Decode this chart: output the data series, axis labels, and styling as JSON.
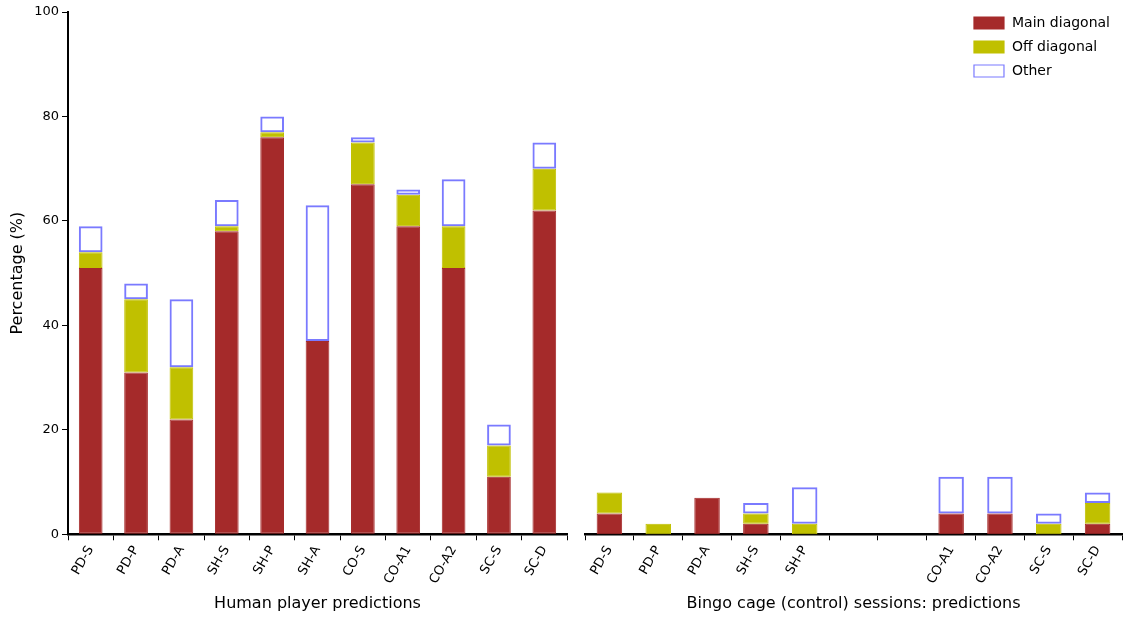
{
  "chart_data": [
    {
      "type": "bar",
      "stacked": true,
      "xlabel": "Human player predictions",
      "ylabel": "Percentage (%)",
      "categories": [
        "PD-S",
        "PD-P",
        "PD-A",
        "SH-S",
        "SH-P",
        "SH-A",
        "CO-S",
        "CO-A1",
        "CO-A2",
        "SC-S",
        "SC-D"
      ],
      "ylim": [
        0,
        100
      ],
      "yticks": [
        0,
        20,
        40,
        60,
        80,
        100
      ],
      "series": [
        {
          "color": "#a52a2a",
          "values": [
            51,
            31,
            22,
            58,
            76,
            37,
            67,
            59,
            51,
            11,
            62
          ]
        },
        {
          "color": "#c0c000",
          "values": [
            3,
            14,
            10,
            1,
            1,
            0,
            8,
            6,
            8,
            6,
            8
          ]
        },
        {
          "color": "#7a7aff",
          "values": [
            5,
            3,
            13,
            5,
            3,
            26,
            1,
            1,
            9,
            4,
            5
          ]
        }
      ]
    },
    {
      "type": "bar",
      "stacked": true,
      "xlabel": "Bingo cage (control) sessions: predictions",
      "categories": [
        "PD-S",
        "PD-P",
        "PD-A",
        "SH-S",
        "SH-P",
        null,
        null,
        "CO-A1",
        "CO-A2",
        "SC-S",
        "SC-D"
      ],
      "ylim": [
        0,
        100
      ],
      "yticks": [
        0,
        20,
        40,
        60,
        80,
        100
      ],
      "tick_labels": "x",
      "legend": "top right",
      "series": [
        {
          "name": "Main diagonal",
          "color": "#a52a2a",
          "values": [
            4,
            0,
            7,
            2,
            0,
            null,
            null,
            4,
            4,
            0,
            2
          ]
        },
        {
          "name": "Off diagonal",
          "color": "#c0c000",
          "values": [
            4,
            2,
            0,
            2,
            2,
            null,
            null,
            0,
            0,
            2,
            4
          ]
        },
        {
          "name": "Other",
          "color": "#7a7aff",
          "values": [
            0,
            0,
            0,
            2,
            7,
            null,
            null,
            7,
            7,
            2,
            2
          ]
        }
      ]
    }
  ]
}
